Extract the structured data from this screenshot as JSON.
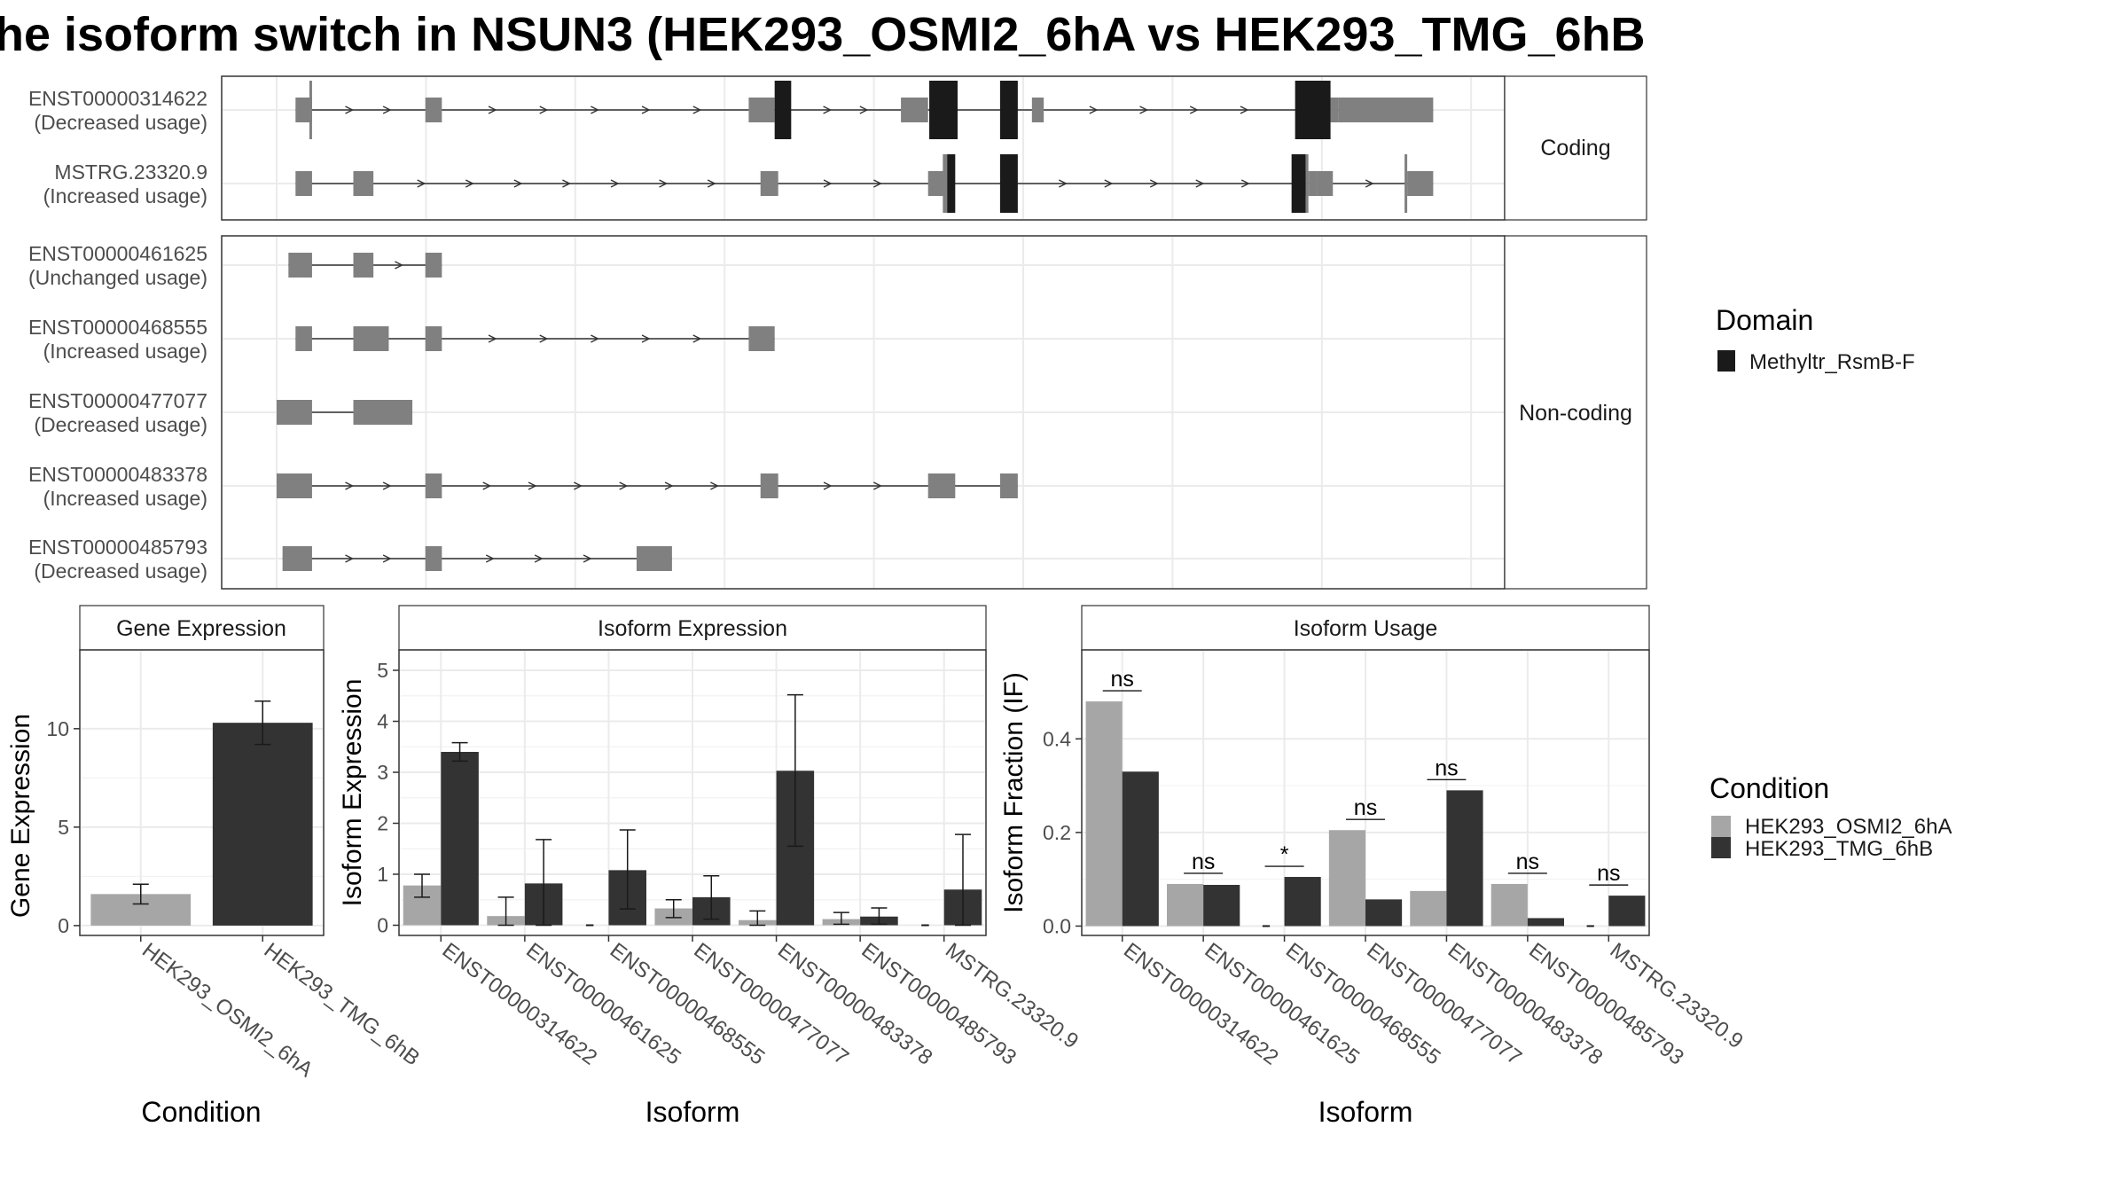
{
  "title": "he isoform switch in NSUN3 (HEK293_OSMI2_6hA vs HEK293_TMG_6hB",
  "colors": {
    "exon": "#808080",
    "domain": "#1a1a1a",
    "cond_a": "#a6a6a6",
    "cond_b": "#333333"
  },
  "chart_data": [
    {
      "type": "gene-structure",
      "facets": [
        "Coding",
        "Non-coding"
      ],
      "x_range": [
        0,
        1000
      ],
      "transcripts": [
        {
          "id": "ENST00000314622",
          "usage": "(Decreased usage)",
          "facet": "Coding",
          "start": 16,
          "end": 980,
          "exons": [
            [
              16,
              30
            ],
            [
              126,
              140
            ],
            [
              400,
              422
            ],
            [
              529,
              552
            ],
            [
              640,
              650
            ],
            [
              893,
              900
            ]
          ],
          "domains": [
            [
              422,
              436
            ],
            [
              553,
              577
            ],
            [
              613,
              628
            ],
            [
              863,
              893
            ]
          ],
          "cds_tail": [
            900,
            980
          ]
        },
        {
          "id": "MSTRG.23320.9",
          "usage": "(Increased usage)",
          "facet": "Coding",
          "start": 16,
          "end": 980,
          "exons": [
            [
              16,
              30
            ],
            [
              65,
              82
            ],
            [
              410,
              425
            ],
            [
              552,
              566
            ],
            [
              872,
              875
            ],
            [
              875,
              882
            ],
            [
              882,
              895
            ],
            [
              958,
              980
            ]
          ],
          "domains": [
            [
              566,
              575
            ],
            [
              613,
              628
            ],
            [
              860,
              872
            ]
          ]
        },
        {
          "id": "ENST00000461625",
          "usage": "(Unchanged usage)",
          "facet": "Non-coding",
          "start": 10,
          "end": 140,
          "exons": [
            [
              10,
              30
            ],
            [
              65,
              82
            ],
            [
              126,
              140
            ]
          ]
        },
        {
          "id": "ENST00000468555",
          "usage": "(Increased usage)",
          "facet": "Non-coding",
          "start": 16,
          "end": 422,
          "exons": [
            [
              16,
              30
            ],
            [
              65,
              95
            ],
            [
              126,
              140
            ],
            [
              400,
              422
            ]
          ]
        },
        {
          "id": "ENST00000477077",
          "usage": "(Decreased usage)",
          "facet": "Non-coding",
          "start": 0,
          "end": 115,
          "exons": [
            [
              0,
              30
            ],
            [
              65,
              115
            ]
          ]
        },
        {
          "id": "ENST00000483378",
          "usage": "(Increased usage)",
          "facet": "Non-coding",
          "start": 0,
          "end": 628,
          "exons": [
            [
              0,
              30
            ],
            [
              126,
              140
            ],
            [
              410,
              425
            ],
            [
              552,
              575
            ],
            [
              613,
              628
            ]
          ]
        },
        {
          "id": "ENST00000485793",
          "usage": "(Decreased usage)",
          "facet": "Non-coding",
          "start": 5,
          "end": 335,
          "exons": [
            [
              5,
              30
            ],
            [
              126,
              140
            ],
            [
              305,
              335
            ]
          ]
        }
      ],
      "legend_title": "Domain",
      "legend_item": "Methyltr_RsmB-F"
    },
    {
      "type": "bar",
      "title": "Gene Expression",
      "xlabel": "Condition",
      "ylabel": "Gene Expression",
      "ylim": [
        -0.5,
        14
      ],
      "yticks": [
        0,
        5,
        10
      ],
      "categories": [
        "HEK293_OSMI2_6hA",
        "HEK293_TMG_6hB"
      ],
      "values": [
        1.6,
        10.3
      ],
      "err_low": [
        1.1,
        9.2
      ],
      "err_high": [
        2.1,
        11.4
      ]
    },
    {
      "type": "bar",
      "title": "Isoform Expression",
      "xlabel": "Isoform",
      "ylabel": "Isoform Expression",
      "ylim": [
        -0.2,
        5.4
      ],
      "yticks": [
        0,
        1,
        2,
        3,
        4,
        5
      ],
      "categories": [
        "ENST00000314622",
        "ENST00000461625",
        "ENST00000468555",
        "ENST00000477077",
        "ENST00000483378",
        "ENST00000485793",
        "MSTRG.23320.9"
      ],
      "series": [
        {
          "name": "HEK293_OSMI2_6hA",
          "values": [
            0.78,
            0.18,
            0.0,
            0.33,
            0.1,
            0.12,
            0.0
          ],
          "err_low": [
            0.55,
            0.0,
            0.0,
            0.15,
            0.0,
            0.02,
            0.0
          ],
          "err_high": [
            1.0,
            0.55,
            0.0,
            0.5,
            0.28,
            0.25,
            0.0
          ]
        },
        {
          "name": "HEK293_TMG_6hB",
          "values": [
            3.4,
            0.82,
            1.08,
            0.55,
            3.03,
            0.17,
            0.7
          ],
          "err_low": [
            3.22,
            0.0,
            0.32,
            0.12,
            1.55,
            0.02,
            0.0
          ],
          "err_high": [
            3.58,
            1.68,
            1.87,
            0.97,
            4.52,
            0.34,
            1.78
          ]
        }
      ]
    },
    {
      "type": "bar",
      "title": "Isoform Usage",
      "xlabel": "Isoform",
      "ylabel": "Isoform Fraction (IF)",
      "ylim": [
        -0.02,
        0.59
      ],
      "yticks": [
        0.0,
        0.2,
        0.4
      ],
      "ytick_labels": [
        "0.0",
        "0.2",
        "0.4"
      ],
      "categories": [
        "ENST00000314622",
        "ENST00000461625",
        "ENST00000468555",
        "ENST00000477077",
        "ENST00000483378",
        "ENST00000485793",
        "MSTRG.23320.9"
      ],
      "series": [
        {
          "name": "HEK293_OSMI2_6hA",
          "values": [
            0.48,
            0.09,
            0.0,
            0.205,
            0.075,
            0.09,
            0.0
          ]
        },
        {
          "name": "HEK293_TMG_6hB",
          "values": [
            0.33,
            0.088,
            0.105,
            0.057,
            0.29,
            0.017,
            0.065
          ]
        }
      ],
      "significance": [
        "ns",
        "ns",
        "*",
        "ns",
        "ns",
        "ns",
        "ns"
      ],
      "legend_title": "Condition",
      "legend_items": [
        "HEK293_OSMI2_6hA",
        "HEK293_TMG_6hB"
      ]
    }
  ]
}
